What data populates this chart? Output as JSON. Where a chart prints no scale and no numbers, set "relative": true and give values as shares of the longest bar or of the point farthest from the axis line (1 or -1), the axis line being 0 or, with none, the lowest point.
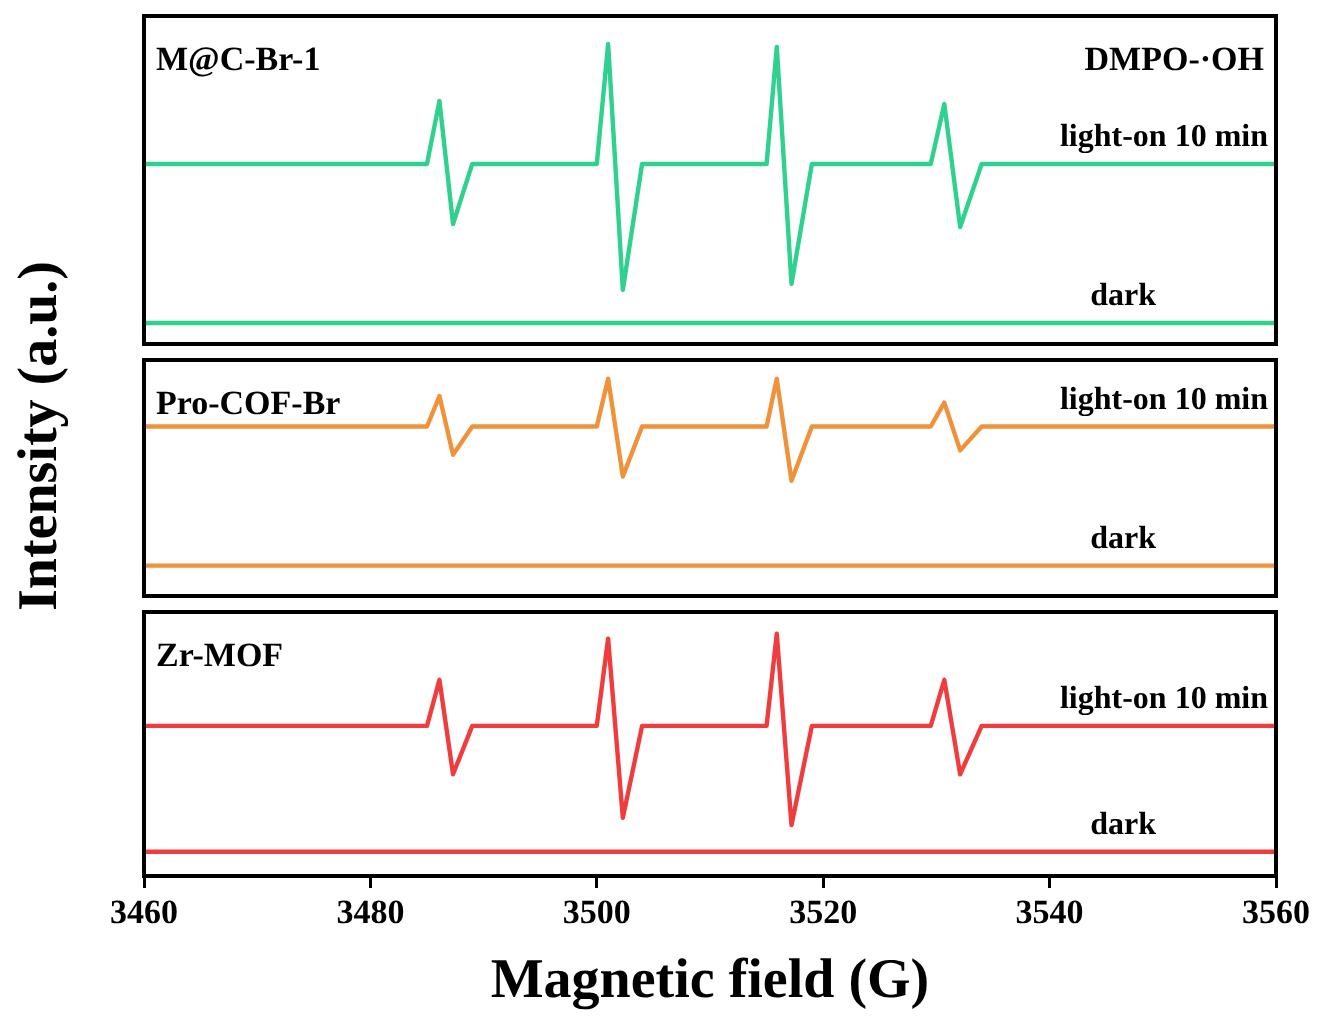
{
  "chart_data": [
    {
      "type": "line",
      "relative": true,
      "xlim": [
        3460,
        3560
      ],
      "xticks": [
        3460,
        3480,
        3500,
        3520,
        3540,
        3560
      ],
      "tick_labels": false,
      "annotations": [
        "M@C-Br-1",
        "DMPO-·OH"
      ],
      "series": [
        {
          "name": "light-on 10 min",
          "color": "#2ed18e",
          "x": [
            3460,
            3485,
            3486.1,
            3487.3,
            3489,
            3500,
            3501.0,
            3502.3,
            3504,
            3515,
            3515.9,
            3517.2,
            3519,
            3529.5,
            3530.7,
            3532.1,
            3534,
            3560
          ],
          "values": [
            0.6,
            0.6,
            0.81,
            0.4,
            0.6,
            0.6,
            1,
            0.18,
            0.6,
            0.6,
            0.99,
            0.2,
            0.6,
            0.6,
            0.8,
            0.39,
            0.6,
            0.6
          ]
        },
        {
          "name": "dark",
          "color": "#2ed18e",
          "x": [
            3460,
            3480,
            3500,
            3520,
            3540,
            3560
          ],
          "values": [
            0.07,
            0.07,
            0.07,
            0.07,
            0.07,
            0.07
          ]
        }
      ]
    },
    {
      "type": "line",
      "relative": true,
      "xlim": [
        3460,
        3560
      ],
      "xticks": [
        3460,
        3480,
        3500,
        3520,
        3540,
        3560
      ],
      "tick_labels": false,
      "ylabel": "Intensity (a.u.)",
      "annotations": [
        "Pro-COF-Br"
      ],
      "series": [
        {
          "name": "light-on 10 min",
          "color": "#f0923a",
          "x": [
            3460,
            3485,
            3486.1,
            3487.3,
            3489,
            3500,
            3501.0,
            3502.3,
            3504,
            3515,
            3515.9,
            3517.2,
            3519,
            3529.5,
            3530.7,
            3532.1,
            3534,
            3560
          ],
          "values": [
            0.78,
            0.78,
            0.92,
            0.65,
            0.78,
            0.78,
            1,
            0.55,
            0.78,
            0.78,
            1,
            0.53,
            0.78,
            0.78,
            0.89,
            0.67,
            0.78,
            0.78
          ]
        },
        {
          "name": "dark",
          "color": "#f0923a",
          "x": [
            3460,
            3480,
            3500,
            3520,
            3540,
            3560
          ],
          "values": [
            0.14,
            0.14,
            0.14,
            0.14,
            0.14,
            0.14
          ]
        }
      ]
    },
    {
      "type": "line",
      "relative": true,
      "xlim": [
        3460,
        3560
      ],
      "xticks": [
        3460,
        3480,
        3500,
        3520,
        3540,
        3560
      ],
      "tick_labels": "x",
      "xlabel": "Magnetic field (G)",
      "annotations": [
        "Zr-MOF"
      ],
      "series": [
        {
          "name": "light-on 10 min",
          "color": "#f03c3c",
          "x": [
            3460,
            3485,
            3486.1,
            3487.3,
            3489,
            3500,
            3501.0,
            3502.3,
            3504,
            3515,
            3515.9,
            3517.2,
            3519,
            3529.5,
            3530.7,
            3532.1,
            3534,
            3560
          ],
          "values": [
            0.62,
            0.62,
            0.81,
            0.42,
            0.62,
            0.62,
            0.98,
            0.24,
            0.62,
            0.62,
            1,
            0.21,
            0.62,
            0.62,
            0.81,
            0.42,
            0.62,
            0.62
          ]
        },
        {
          "name": "dark",
          "color": "#f03c3c",
          "x": [
            3460,
            3480,
            3500,
            3520,
            3540,
            3560
          ],
          "values": [
            0.1,
            0.1,
            0.1,
            0.1,
            0.1,
            0.1
          ]
        }
      ]
    }
  ]
}
